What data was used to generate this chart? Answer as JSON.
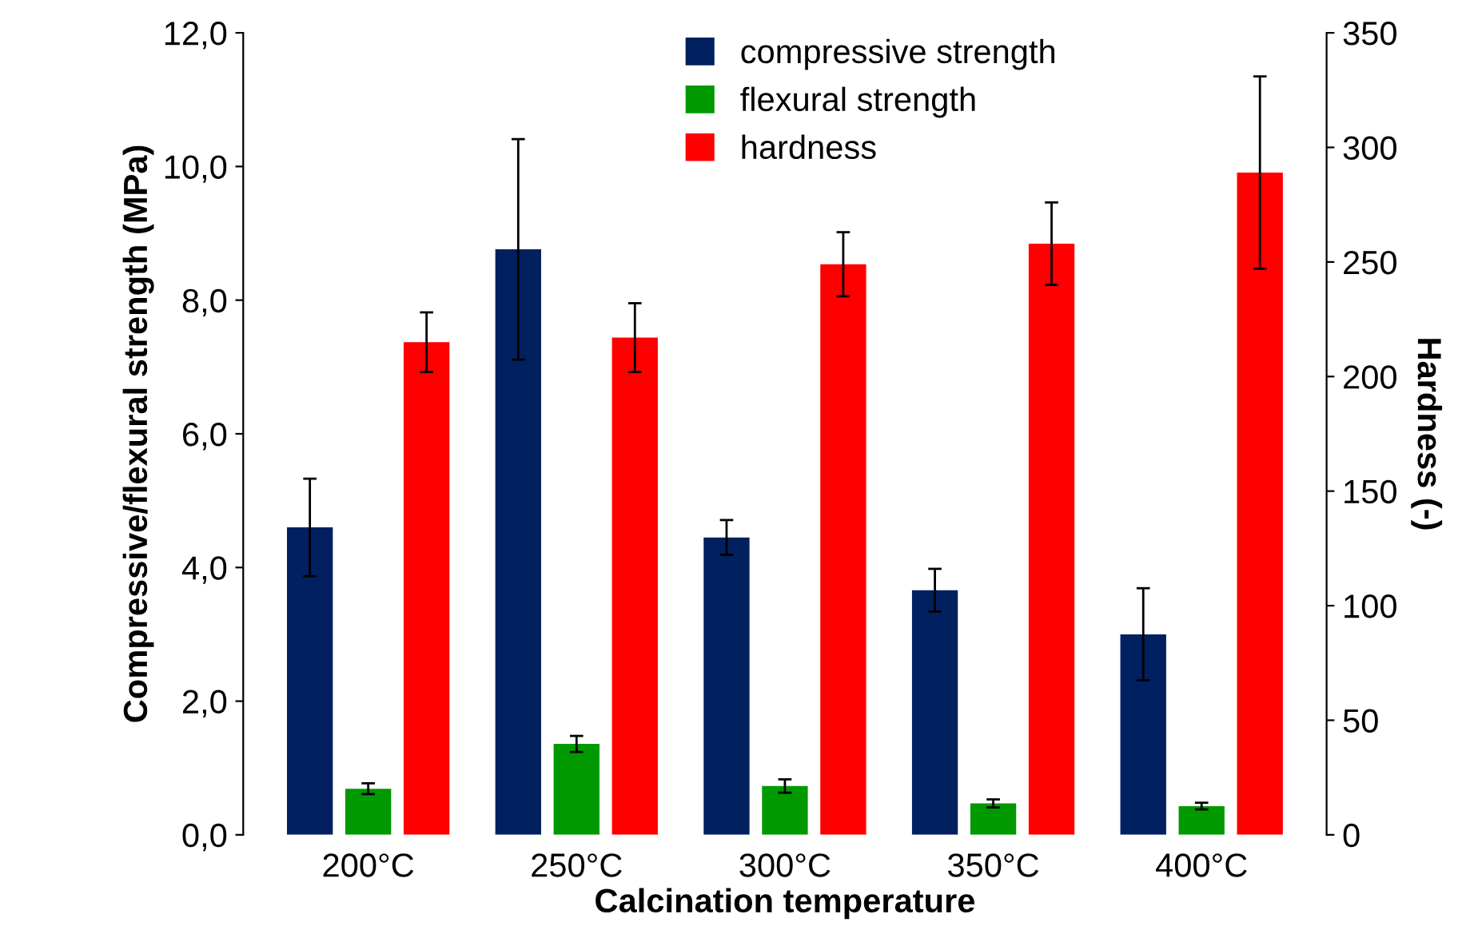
{
  "chart_data": {
    "type": "bar",
    "xlabel": "Calcination temperature",
    "ylabel": "Compressive/flexural strength (MPa)",
    "y2label": "Hardness (-)",
    "categories": [
      "200°C",
      "250°C",
      "300°C",
      "350°C",
      "400°C"
    ],
    "series": [
      {
        "name": "compressive strength",
        "color": "#002060",
        "values": [
          4.6,
          8.76,
          4.45,
          3.66,
          3.0
        ],
        "errors": [
          0.73,
          1.65,
          0.26,
          0.32,
          0.69
        ]
      },
      {
        "name": "flexural strength",
        "color": "#009900",
        "values": [
          0.69,
          1.36,
          0.73,
          0.47,
          0.43
        ],
        "errors": [
          0.08,
          0.12,
          0.1,
          0.06,
          0.05
        ]
      },
      {
        "name": "hardness",
        "color": "#ff0000",
        "axis": "y2",
        "values": [
          215,
          217,
          249,
          258,
          289
        ],
        "errors": [
          13,
          15,
          14,
          18,
          42
        ]
      }
    ],
    "ylim": [
      0,
      12
    ],
    "yticks": [
      {
        "value": 0,
        "label": "0,0"
      },
      {
        "value": 2,
        "label": "2,0"
      },
      {
        "value": 4,
        "label": "4,0"
      },
      {
        "value": 6,
        "label": "6,0"
      },
      {
        "value": 8,
        "label": "8,0"
      },
      {
        "value": 10,
        "label": "10,0"
      },
      {
        "value": 12,
        "label": "12,0"
      }
    ],
    "y2lim": [
      0,
      350
    ],
    "y2ticks": [
      0,
      50,
      100,
      150,
      200,
      250,
      300,
      350
    ],
    "grid": false,
    "legend": "top"
  }
}
